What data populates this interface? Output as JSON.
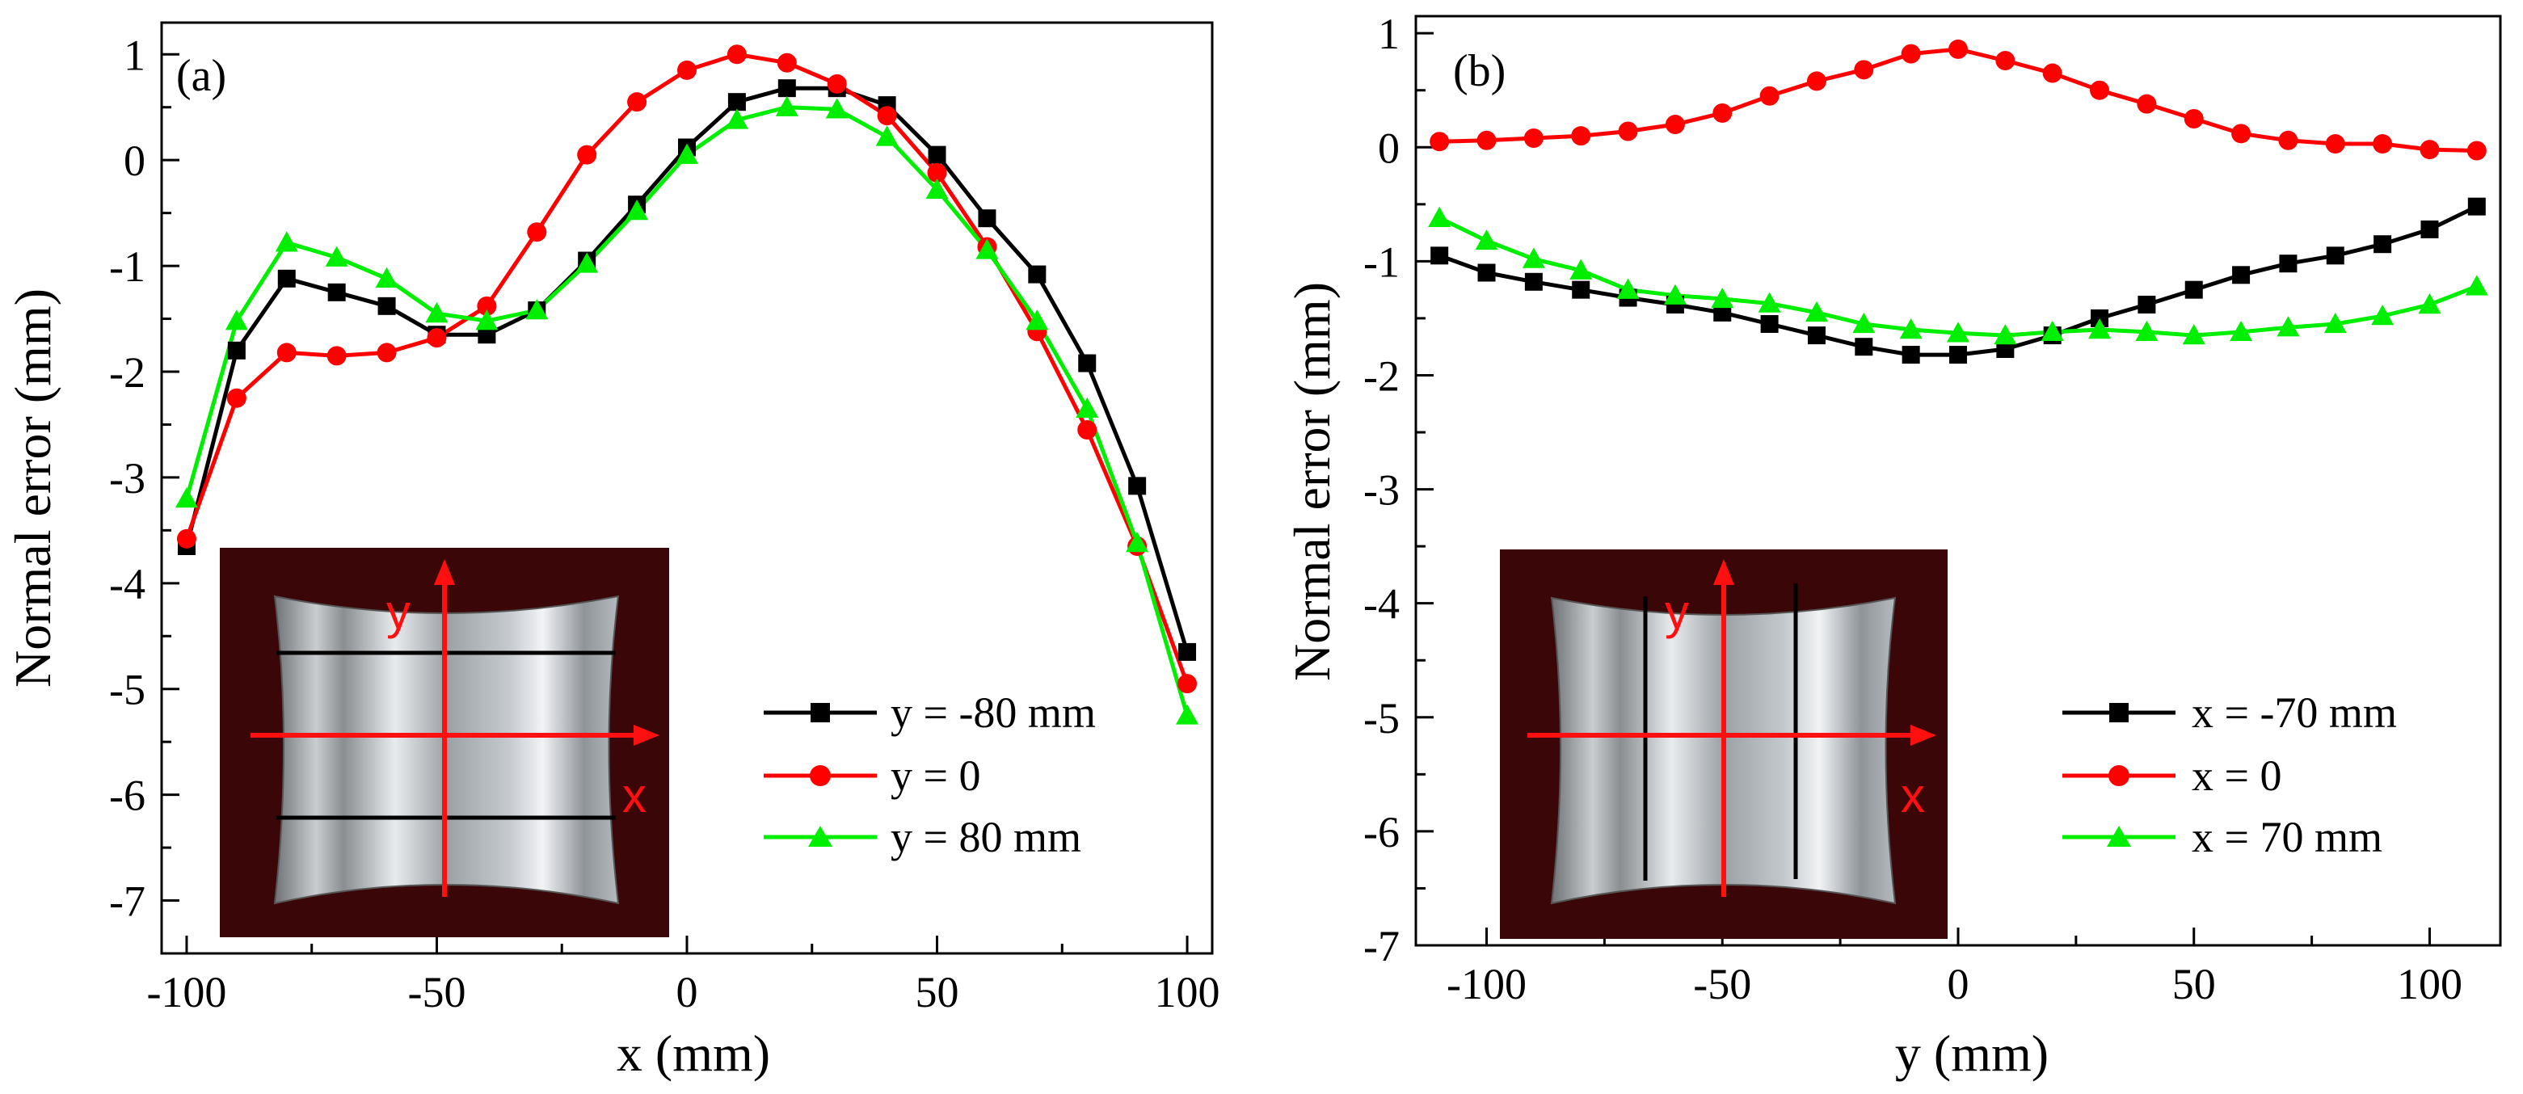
{
  "chart_data": [
    {
      "type": "line",
      "panel_label": "(a)",
      "xlabel": "x (mm)",
      "ylabel": "Normal error (mm)",
      "xlim": [
        -105,
        105
      ],
      "ylim": [
        -7.5,
        1.3
      ],
      "xticks": [
        -100,
        -50,
        0,
        50,
        100
      ],
      "xtick_labels": [
        "-100",
        "-50",
        "0",
        "50",
        "100"
      ],
      "yticks": [
        -7,
        -6,
        -5,
        -4,
        -3,
        -2,
        -1,
        0,
        1
      ],
      "ytick_labels": [
        "-7",
        "-6",
        "-5",
        "-4",
        "-3",
        "-2",
        "-1",
        "0",
        "1"
      ],
      "legend_position": "lower-right",
      "x": [
        -100,
        -90,
        -80,
        -70,
        -60,
        -50,
        -40,
        -30,
        -20,
        -10,
        0,
        10,
        20,
        30,
        40,
        50,
        60,
        70,
        80,
        90,
        100
      ],
      "series": [
        {
          "name": "y = -80 mm",
          "color": "#000000",
          "marker": "square",
          "values": [
            -3.65,
            -1.8,
            -1.12,
            -1.25,
            -1.38,
            -1.65,
            -1.65,
            -1.42,
            -0.95,
            -0.42,
            0.12,
            0.55,
            0.68,
            0.68,
            0.52,
            0.05,
            -0.55,
            -1.08,
            -1.92,
            -3.08,
            -4.65
          ]
        },
        {
          "name": "y = 0",
          "color": "#ff0000",
          "marker": "circle",
          "values": [
            -3.58,
            -2.25,
            -1.82,
            -1.85,
            -1.82,
            -1.68,
            -1.38,
            -0.68,
            0.05,
            0.55,
            0.85,
            1.0,
            0.92,
            0.72,
            0.42,
            -0.12,
            -0.82,
            -1.62,
            -2.55,
            -3.65,
            -4.95
          ]
        },
        {
          "name": "y = 80 mm",
          "color": "#00ee00",
          "marker": "triangle",
          "values": [
            -3.2,
            -1.52,
            -0.78,
            -0.92,
            -1.12,
            -1.45,
            -1.52,
            -1.42,
            -0.98,
            -0.48,
            0.05,
            0.38,
            0.5,
            0.48,
            0.22,
            -0.28,
            -0.85,
            -1.52,
            -2.35,
            -3.62,
            -5.25
          ]
        }
      ],
      "inset": {
        "y_axis_label": "y",
        "x_axis_label": "x"
      }
    },
    {
      "type": "line",
      "panel_label": "(b)",
      "xlabel": "y (mm)",
      "ylabel": "Normal error (mm)",
      "xlim": [
        -115,
        115
      ],
      "ylim": [
        -7,
        1.15
      ],
      "xticks": [
        -100,
        -50,
        0,
        50,
        100
      ],
      "xtick_labels": [
        "-100",
        "-50",
        "0",
        "50",
        "100"
      ],
      "yticks": [
        -7,
        -6,
        -5,
        -4,
        -3,
        -2,
        -1,
        0,
        1
      ],
      "ytick_labels": [
        "-7",
        "-6",
        "-5",
        "-4",
        "-3",
        "-2",
        "-1",
        "0",
        "1"
      ],
      "legend_position": "lower-right",
      "x": [
        -110,
        -100,
        -90,
        -80,
        -70,
        -60,
        -50,
        -40,
        -30,
        -20,
        -10,
        0,
        10,
        20,
        30,
        40,
        50,
        60,
        70,
        80,
        90,
        100,
        110
      ],
      "series": [
        {
          "name": "x = -70 mm",
          "color": "#000000",
          "marker": "square",
          "values": [
            -0.95,
            -1.1,
            -1.18,
            -1.25,
            -1.32,
            -1.38,
            -1.45,
            -1.55,
            -1.65,
            -1.75,
            -1.82,
            -1.82,
            -1.77,
            -1.65,
            -1.5,
            -1.38,
            -1.25,
            -1.12,
            -1.02,
            -0.95,
            -0.85,
            -0.72,
            -0.52
          ]
        },
        {
          "name": "x = 0",
          "color": "#ff0000",
          "marker": "circle",
          "values": [
            0.05,
            0.06,
            0.08,
            0.1,
            0.14,
            0.2,
            0.3,
            0.45,
            0.58,
            0.68,
            0.82,
            0.86,
            0.76,
            0.65,
            0.5,
            0.38,
            0.25,
            0.12,
            0.06,
            0.03,
            0.03,
            -0.02,
            -0.03
          ]
        },
        {
          "name": "x = 70 mm",
          "color": "#00ee00",
          "marker": "triangle",
          "values": [
            -0.62,
            -0.82,
            -0.98,
            -1.08,
            -1.25,
            -1.3,
            -1.33,
            -1.37,
            -1.45,
            -1.55,
            -1.6,
            -1.63,
            -1.65,
            -1.62,
            -1.6,
            -1.62,
            -1.65,
            -1.62,
            -1.58,
            -1.55,
            -1.48,
            -1.38,
            -1.22
          ]
        }
      ],
      "inset": {
        "y_axis_label": "y",
        "x_axis_label": "x"
      }
    }
  ]
}
